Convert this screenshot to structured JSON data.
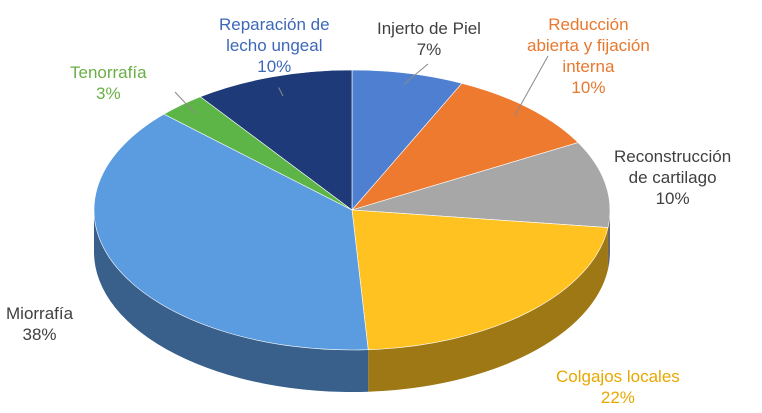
{
  "chart_data": {
    "type": "pie",
    "title": "",
    "slices": [
      {
        "label_lines": [
          "Injerto de Piel"
        ],
        "value": 7,
        "pct_label": "7%",
        "color": "#4F7FD0",
        "label_color": "#404040"
      },
      {
        "label_lines": [
          "Reducción",
          "abierta y fijación",
          "interna"
        ],
        "value": 10,
        "pct_label": "10%",
        "color": "#EE7A30",
        "label_color": "#E8782E"
      },
      {
        "label_lines": [
          "Reconstrucción",
          "de cartilago"
        ],
        "value": 10,
        "pct_label": "10%",
        "color": "#A7A7A7",
        "label_color": "#404040"
      },
      {
        "label_lines": [
          "Colgajos locales"
        ],
        "value": 22,
        "pct_label": "22%",
        "color": "#FFC220",
        "label_color": "#E8A800"
      },
      {
        "label_lines": [
          "Miorrafía"
        ],
        "value": 38,
        "pct_label": "38%",
        "color": "#5B9BE0",
        "label_color": "#404040"
      },
      {
        "label_lines": [
          "Tenorrafía"
        ],
        "value": 3,
        "pct_label": "3%",
        "color": "#5DB548",
        "label_color": "#6AAE46"
      },
      {
        "label_lines": [
          "Reparación de",
          "lecho ungeal"
        ],
        "value": 10,
        "pct_label": "10%",
        "color": "#1F3A78",
        "label_color": "#3D68B8"
      }
    ]
  }
}
